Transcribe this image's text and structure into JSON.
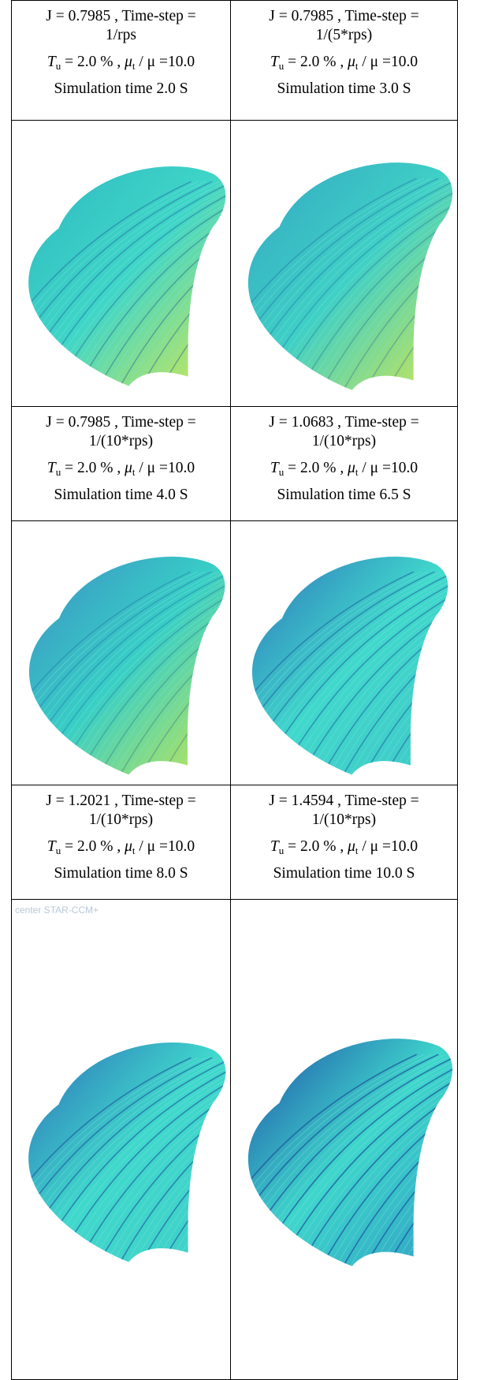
{
  "table": {
    "rows": [
      {
        "cells": [
          {
            "line1": "J = 0.7985 , Time-step =",
            "line2": "1/rps",
            "tu_symbol": "T",
            "tu_sub": "u",
            "tu_value": "= 2.0 % ,",
            "mu_symbol": "μ",
            "mu_sub": "t",
            "mu_value": "/ μ =10.0",
            "sim_time": "Simulation time 2.0 S"
          },
          {
            "line1": "J = 0.7985 , Time-step =",
            "line2": "1/(5*rps)",
            "tu_symbol": "T",
            "tu_sub": "u",
            "tu_value": "= 2.0 % ,",
            "mu_symbol": "μ",
            "mu_sub": "t",
            "mu_value": "/ μ =10.0",
            "sim_time": "Simulation time 3.0 S"
          }
        ]
      },
      {
        "cells": [
          {
            "line1": "J = 0.7985 , Time-step =",
            "line2": "1/(10*rps)",
            "tu_symbol": "T",
            "tu_sub": "u",
            "tu_value": "= 2.0 % ,",
            "mu_symbol": "μ",
            "mu_sub": "t",
            "mu_value": "/ μ =10.0",
            "sim_time": "Simulation time 4.0 S"
          },
          {
            "line1": "J = 1.0683 , Time-step =",
            "line2": "1/(10*rps)",
            "tu_symbol": "T",
            "tu_sub": "u",
            "tu_value": "= 2.0 % ,",
            "mu_symbol": "μ",
            "mu_sub": "t",
            "mu_value": "/ μ =10.0",
            "sim_time": "Simulation time 6.5 S"
          }
        ]
      },
      {
        "cells": [
          {
            "line1": "J = 1.2021 , Time-step =",
            "line2": "1/(10*rps)",
            "tu_symbol": "T",
            "tu_sub": "u",
            "tu_value": "= 2.0 % ,",
            "mu_symbol": "μ",
            "mu_sub": "t",
            "mu_value": "/ μ =10.0",
            "sim_time": "Simulation time 8.0 S"
          },
          {
            "line1": "J = 1.4594 , Time-step =",
            "line2": "1/(10*rps)",
            "tu_symbol": "T",
            "tu_sub": "u",
            "tu_value": "= 2.0 % ,",
            "mu_symbol": "μ",
            "mu_sub": "t",
            "mu_value": "/ μ =10.0",
            "sim_time": "Simulation time 10.0 S"
          }
        ]
      }
    ],
    "watermark": "center STAR-CCM+"
  }
}
